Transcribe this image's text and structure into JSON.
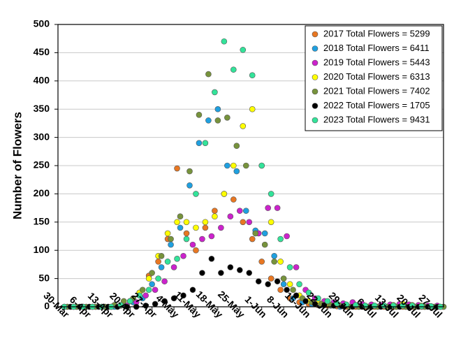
{
  "chart_data": {
    "type": "scatter",
    "y_label": "Number of Flowers",
    "xlim": [
      -2,
      121
    ],
    "ylim": [
      0,
      500
    ],
    "yticks": [
      0,
      50,
      100,
      150,
      200,
      250,
      300,
      350,
      400,
      450,
      500
    ],
    "xticks": [
      {
        "value": 0,
        "label": "30-Mar"
      },
      {
        "value": 7,
        "label": "6-Apr"
      },
      {
        "value": 14,
        "label": "13-Apr"
      },
      {
        "value": 21,
        "label": "20-Apr"
      },
      {
        "value": 28,
        "label": "27-Apr"
      },
      {
        "value": 35,
        "label": "4-May"
      },
      {
        "value": 42,
        "label": "11-May"
      },
      {
        "value": 49,
        "label": "18-May"
      },
      {
        "value": 56,
        "label": "25-May"
      },
      {
        "value": 63,
        "label": "1-Jun"
      },
      {
        "value": 70,
        "label": "8-Jun"
      },
      {
        "value": 77,
        "label": "15-Jun"
      },
      {
        "value": 84,
        "label": "22-Jun"
      },
      {
        "value": 91,
        "label": "29-Jun"
      },
      {
        "value": 98,
        "label": "6-Jul"
      },
      {
        "value": 105,
        "label": "13-Jul"
      },
      {
        "value": 112,
        "label": "20-Jul"
      },
      {
        "value": 119,
        "label": "27-Jul"
      }
    ],
    "grid": true,
    "legend_position": "upper right",
    "series": [
      {
        "name": "2017 Total Flowers = 5299",
        "color": "#e87722",
        "x": [
          0,
          3,
          6,
          9,
          12,
          15,
          18,
          21,
          24,
          27,
          30,
          33,
          36,
          39,
          42,
          45,
          48,
          51,
          54,
          57,
          60,
          63,
          66,
          69,
          72,
          75,
          78,
          81,
          84,
          87,
          90,
          93,
          96,
          99,
          102,
          105,
          108,
          111,
          114,
          117,
          120
        ],
        "values": [
          0,
          0,
          0,
          0,
          0,
          0,
          2,
          10,
          25,
          55,
          80,
          120,
          245,
          130,
          100,
          140,
          170,
          200,
          190,
          150,
          120,
          80,
          50,
          30,
          15,
          8,
          5,
          3,
          2,
          1,
          0,
          0,
          0,
          0,
          0,
          0,
          0,
          0,
          0,
          0,
          0
        ]
      },
      {
        "name": "2018 Total Flowers = 6411",
        "color": "#1fa0e0",
        "x": [
          1,
          4,
          7,
          10,
          13,
          16,
          19,
          22,
          25,
          28,
          31,
          34,
          37,
          40,
          43,
          46,
          49,
          52,
          55,
          58,
          61,
          64,
          67,
          70,
          73,
          76,
          79,
          82,
          85,
          88,
          91,
          94,
          97,
          100,
          103,
          106,
          109,
          112,
          115,
          118,
          121
        ],
        "values": [
          0,
          0,
          0,
          0,
          0,
          0,
          3,
          8,
          15,
          40,
          70,
          110,
          140,
          215,
          290,
          330,
          350,
          250,
          240,
          170,
          135,
          130,
          90,
          40,
          15,
          8,
          5,
          3,
          2,
          0,
          0,
          0,
          0,
          0,
          0,
          0,
          0,
          0,
          0,
          0,
          0
        ]
      },
      {
        "name": "2019 Total Flowers = 5443",
        "color": "#cc22cc",
        "x": [
          2,
          5,
          8,
          11,
          14,
          17,
          20,
          23,
          26,
          29,
          32,
          35,
          38,
          41,
          44,
          47,
          50,
          53,
          56,
          59,
          62,
          65,
          68,
          71,
          74,
          77,
          80,
          83,
          86,
          89,
          92,
          95,
          98,
          101,
          104,
          107,
          110,
          113,
          116,
          119
        ],
        "values": [
          0,
          0,
          0,
          0,
          0,
          0,
          2,
          8,
          20,
          30,
          45,
          70,
          90,
          110,
          120,
          125,
          140,
          160,
          170,
          150,
          130,
          175,
          175,
          125,
          70,
          30,
          15,
          10,
          8,
          6,
          8,
          5,
          4,
          3,
          4,
          5,
          4,
          3,
          2,
          2
        ]
      },
      {
        "name": "2020 Total Flowers = 6313",
        "color": "#ffff00",
        "x": [
          0,
          3,
          6,
          9,
          12,
          15,
          18,
          21,
          24,
          27,
          30,
          33,
          36,
          39,
          42,
          45,
          48,
          51,
          54,
          57,
          60,
          63,
          66,
          69,
          72,
          75,
          78,
          81,
          84,
          87,
          90,
          93,
          96,
          99,
          102,
          105,
          108,
          111,
          114,
          117,
          120
        ],
        "values": [
          0,
          0,
          0,
          0,
          0,
          0,
          3,
          10,
          25,
          50,
          90,
          130,
          150,
          150,
          140,
          150,
          160,
          200,
          250,
          320,
          350,
          250,
          150,
          80,
          40,
          20,
          10,
          8,
          5,
          4,
          3,
          3,
          2,
          2,
          2,
          3,
          5,
          3,
          2,
          1,
          0
        ]
      },
      {
        "name": "2021 Total Flowers = 7402",
        "color": "#77933c",
        "x": [
          1,
          4,
          7,
          10,
          13,
          16,
          19,
          22,
          25,
          28,
          31,
          34,
          37,
          40,
          43,
          46,
          49,
          52,
          55,
          58,
          61,
          64,
          67,
          70,
          73,
          76,
          79,
          82,
          85,
          88,
          91,
          94,
          97,
          100,
          103,
          106,
          109,
          112,
          115,
          118,
          121
        ],
        "values": [
          0,
          0,
          0,
          0,
          0,
          3,
          10,
          15,
          30,
          60,
          90,
          120,
          160,
          240,
          340,
          412,
          330,
          335,
          285,
          250,
          130,
          110,
          80,
          50,
          30,
          15,
          8,
          5,
          3,
          2,
          0,
          0,
          0,
          0,
          0,
          0,
          0,
          0,
          0,
          0,
          0
        ]
      },
      {
        "name": "2022 Total Flowers = 1705",
        "color": "#000000",
        "x": [
          2,
          5,
          8,
          11,
          14,
          17,
          20,
          23,
          26,
          29,
          32,
          35,
          38,
          41,
          44,
          47,
          50,
          53,
          56,
          59,
          62,
          65,
          68,
          71,
          74,
          77,
          80,
          83,
          86,
          89,
          92,
          95,
          98,
          101,
          104,
          107,
          110,
          113,
          116,
          119
        ],
        "values": [
          0,
          0,
          0,
          0,
          0,
          0,
          0,
          0,
          2,
          5,
          10,
          15,
          20,
          30,
          60,
          85,
          60,
          70,
          65,
          60,
          45,
          40,
          45,
          30,
          20,
          10,
          5,
          3,
          2,
          1,
          0,
          0,
          0,
          0,
          0,
          0,
          0,
          0,
          0,
          0
        ]
      },
      {
        "name": "2023 Total Flowers = 9431",
        "color": "#33e39a",
        "x": [
          0,
          3,
          6,
          9,
          12,
          15,
          18,
          21,
          24,
          27,
          30,
          33,
          36,
          39,
          42,
          45,
          48,
          51,
          54,
          57,
          60,
          63,
          66,
          69,
          72,
          75,
          78,
          81,
          84,
          87,
          90,
          93,
          96,
          99,
          102,
          105,
          108,
          111,
          114,
          117,
          120
        ],
        "values": [
          0,
          0,
          0,
          0,
          0,
          0,
          3,
          10,
          20,
          30,
          50,
          80,
          85,
          120,
          200,
          290,
          380,
          470,
          420,
          455,
          410,
          250,
          200,
          120,
          70,
          40,
          25,
          15,
          10,
          6,
          4,
          3,
          2,
          2,
          2,
          2,
          2,
          2,
          1,
          1,
          0
        ]
      }
    ]
  }
}
